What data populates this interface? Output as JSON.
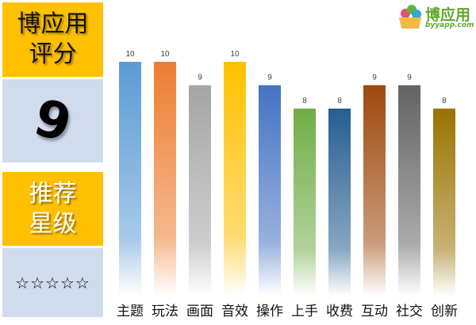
{
  "panel": {
    "title": "博应用\n评分",
    "score": "9",
    "rec_title": "推荐\n星级",
    "stars": "☆☆☆☆☆"
  },
  "logo": {
    "name": "博应用",
    "url": "byyapp.com"
  },
  "chart_data": {
    "type": "bar",
    "categories": [
      "主题",
      "玩法",
      "画面",
      "音效",
      "操作",
      "上手",
      "收费",
      "互动",
      "社交",
      "创新"
    ],
    "values": [
      10,
      10,
      9,
      10,
      9,
      8,
      8,
      9,
      9,
      8
    ],
    "colors": [
      "#5B9BD5",
      "#ED7D31",
      "#A5A5A5",
      "#FFC000",
      "#4472C4",
      "#70AD47",
      "#255E91",
      "#9E480E",
      "#636363",
      "#997300"
    ],
    "ylim": [
      0,
      10
    ],
    "grid": false,
    "fill": "gradient-to-white"
  }
}
